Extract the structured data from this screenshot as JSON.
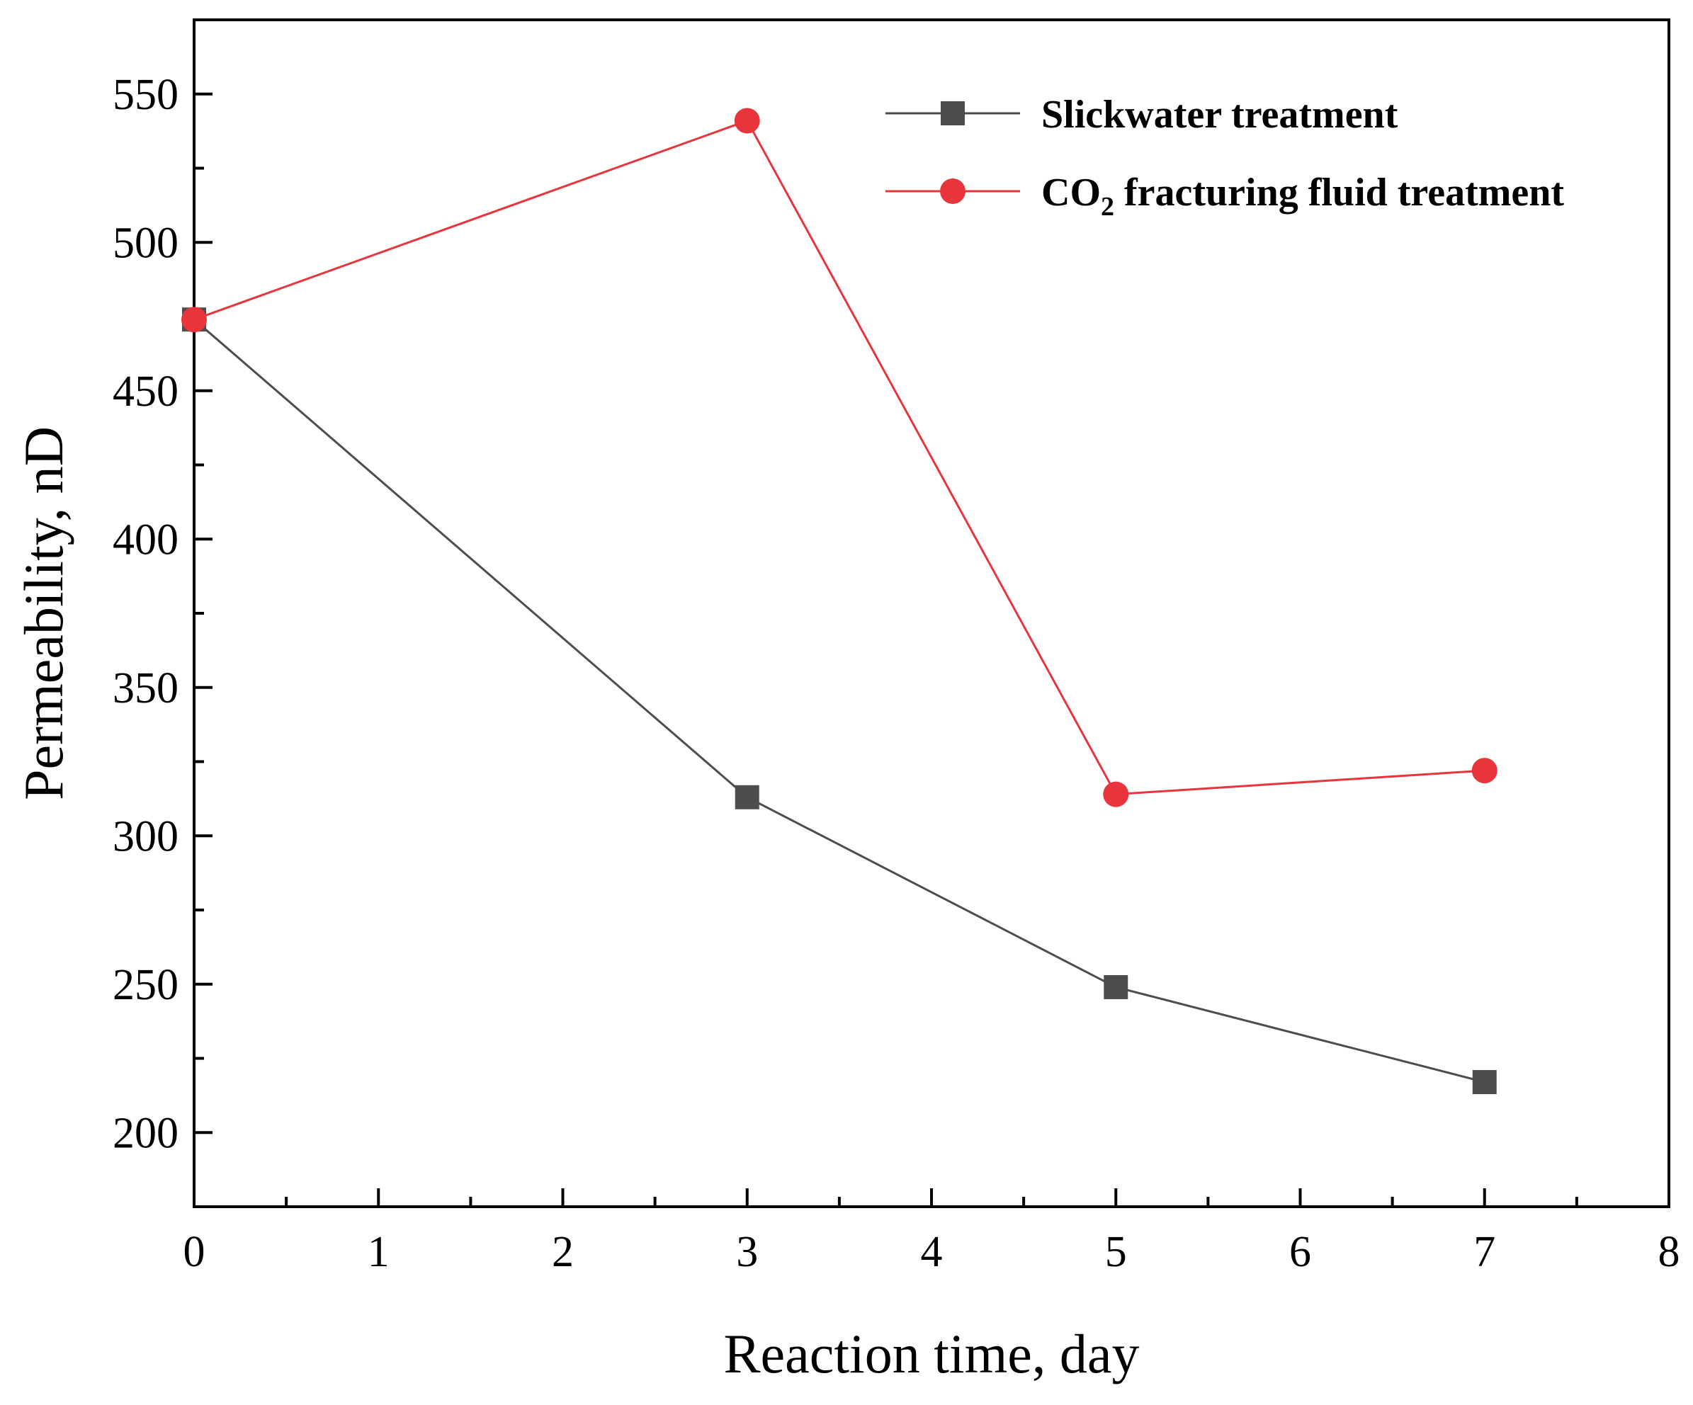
{
  "chart_data": {
    "type": "line",
    "title": "",
    "xlabel": "Reaction time, day",
    "ylabel": "Permeability, nD",
    "xlim": [
      0,
      8
    ],
    "ylim": [
      175,
      575
    ],
    "xticks": [
      0,
      1,
      2,
      3,
      4,
      5,
      6,
      7,
      8
    ],
    "yticks": [
      200,
      250,
      300,
      350,
      400,
      450,
      500,
      550
    ],
    "grid": false,
    "legend_position": "top-right",
    "series": [
      {
        "name": "Slickwater treatment",
        "marker": "square",
        "color": "#4d4d4d",
        "x": [
          0,
          3,
          5,
          7
        ],
        "y": [
          474,
          313,
          249,
          217
        ]
      },
      {
        "name": "CO2 fracturing fluid treatment",
        "label_parts": [
          "CO",
          "2",
          " fracturing fluid treatment"
        ],
        "marker": "circle",
        "color": "#e8353b",
        "x": [
          0,
          3,
          5,
          7
        ],
        "y": [
          474,
          541,
          314,
          322
        ]
      }
    ]
  }
}
